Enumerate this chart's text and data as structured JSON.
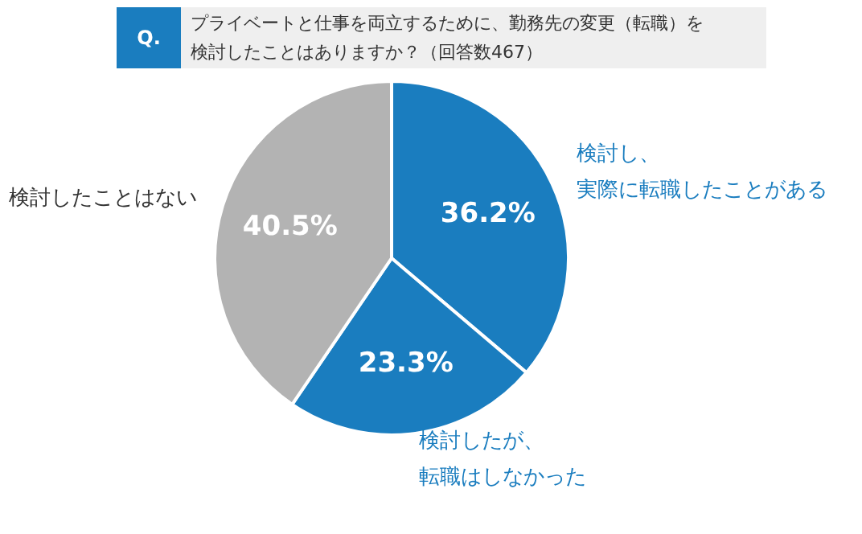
{
  "chart_data": {
    "type": "pie",
    "title": "プライベートと仕事を両立するために、勤務先の変更（転職）を検討したことはありますか？（回答数467）",
    "annotations": [
      "Q."
    ],
    "categories": [
      "検討し、実際に転職したことがある",
      "検討したが、転職はしなかった",
      "検討したことはない"
    ],
    "values": [
      36.2,
      23.3,
      40.5
    ],
    "colors": [
      "#1a7dbf",
      "#1a7dbf",
      "#b3b3b3"
    ],
    "value_labels": [
      "36.2%",
      "23.3%",
      "40.5%"
    ]
  }
}
